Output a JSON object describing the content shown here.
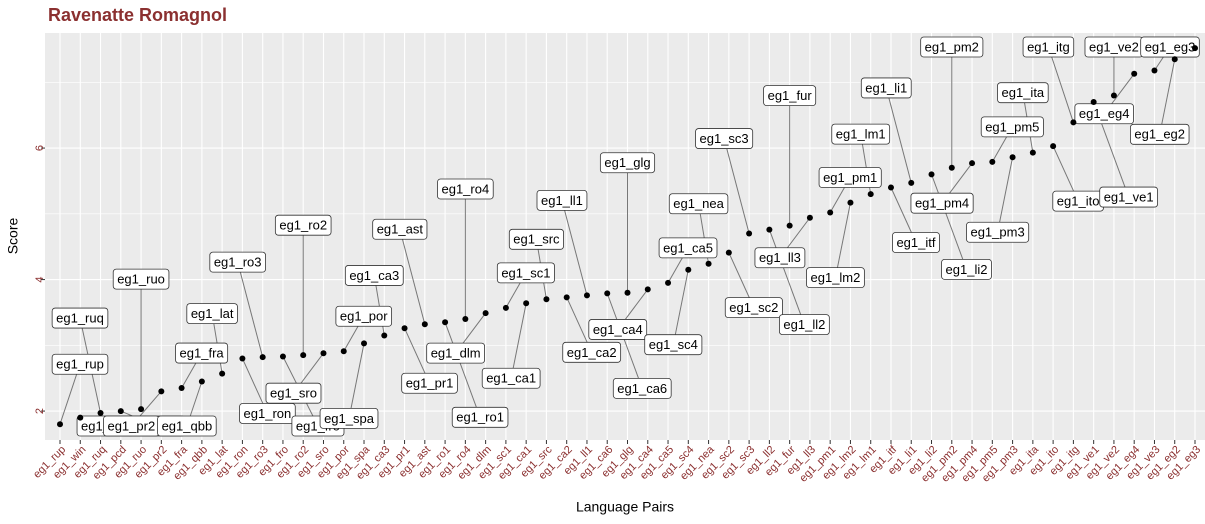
{
  "chart_data": {
    "type": "scatter",
    "title": "Ravenatte Romagnol",
    "x_label": "Language Pairs",
    "y_label": "Score",
    "categories": [
      "eg1_rup",
      "eg1_win",
      "eg1_ruq",
      "eg1_pcd",
      "eg1_ruo",
      "eg1_pr2",
      "eg1_fra",
      "eg1_qbb",
      "eg1_lat",
      "eg1_ron",
      "eg1_ro3",
      "eg1_fro",
      "eg1_ro2",
      "eg1_sro",
      "eg1_por",
      "eg1_spa",
      "eg1_ca3",
      "eg1_pr1",
      "eg1_ast",
      "eg1_ro1",
      "eg1_ro4",
      "eg1_dlm",
      "eg1_sc1",
      "eg1_ca1",
      "eg1_src",
      "eg1_ca2",
      "eg1_ll1",
      "eg1_ca6",
      "eg1_glg",
      "eg1_ca4",
      "eg1_ca5",
      "eg1_sc4",
      "eg1_nea",
      "eg1_sc2",
      "eg1_sc3",
      "eg1_ll2",
      "eg1_fur",
      "eg1_ll3",
      "eg1_pm1",
      "eg1_lm2",
      "eg1_lm1",
      "eg1_itf",
      "eg1_li1",
      "eg1_li2",
      "eg1_pm2",
      "eg1_pm4",
      "eg1_pm5",
      "eg1_pm3",
      "eg1_ita",
      "eg1_ito",
      "eg1_itg",
      "eg1_ve1",
      "eg1_ve2",
      "eg1_eg4",
      "eg1_ve3",
      "eg1_eg2",
      "eg1_eg3"
    ],
    "values": [
      1.8,
      1.9,
      1.97,
      2.0,
      2.03,
      2.3,
      2.35,
      2.45,
      2.57,
      2.8,
      2.82,
      2.83,
      2.85,
      2.88,
      2.91,
      3.03,
      3.15,
      3.26,
      3.32,
      3.35,
      3.4,
      3.49,
      3.57,
      3.64,
      3.7,
      3.73,
      3.76,
      3.79,
      3.8,
      3.85,
      3.95,
      4.15,
      4.24,
      4.41,
      4.7,
      4.76,
      4.82,
      4.94,
      5.02,
      5.17,
      5.3,
      5.4,
      5.47,
      5.6,
      5.7,
      5.77,
      5.79,
      5.86,
      5.93,
      6.03,
      6.39,
      6.7,
      6.8,
      7.13,
      7.18,
      7.35,
      7.52
    ],
    "color": "#000000",
    "ylim": [
      1.56,
      7.75
    ],
    "yticks": [
      2,
      4,
      6
    ],
    "grid": true
  }
}
